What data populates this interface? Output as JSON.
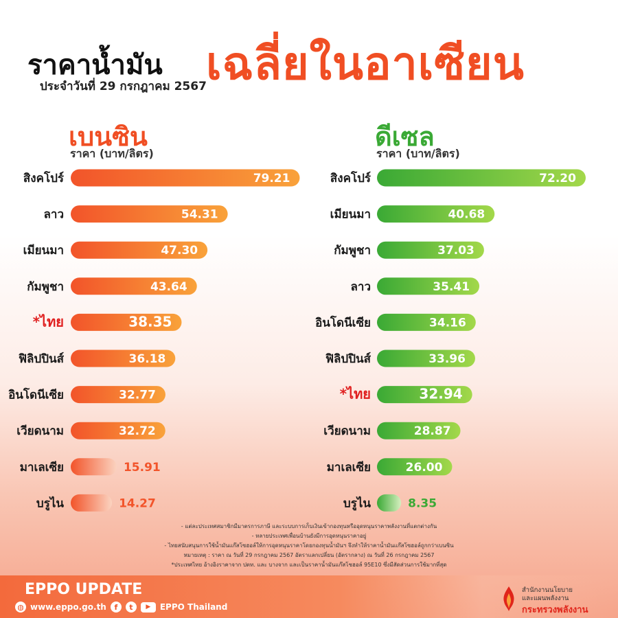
{
  "header": {
    "title_main": "ราคาน้ำมัน",
    "title_accent": "เฉลี่ยในอาเซียน",
    "subtitle": "ประจำวันที่ 29 กรกฎาคม 2567"
  },
  "colors": {
    "accent": "#f04e23",
    "gasoline_bar": "#f2542a",
    "gasoline_bar_end": "#f9a23a",
    "diesel_bar": "#4db848",
    "diesel_bar_end": "#9fd64a",
    "highlight_text": "#e02020"
  },
  "chart_data": [
    {
      "type": "bar",
      "orientation": "horizontal",
      "title": "เบนซิน",
      "ylabel": "ราคา (บาท/ลิตร)",
      "categories": [
        "สิงคโปร์",
        "ลาว",
        "เมียนมา",
        "กัมพูชา",
        "*ไทย",
        "ฟิลิปปินส์",
        "อินโดนีเซีย",
        "เวียดนาม",
        "มาเลเซีย",
        "บรูไน"
      ],
      "values": [
        79.21,
        54.31,
        47.3,
        43.64,
        38.35,
        36.18,
        32.77,
        32.72,
        15.91,
        14.27
      ],
      "labels": [
        "79.21",
        "54.31",
        "47.30",
        "43.64",
        "38.35",
        "36.18",
        "32.77",
        "32.72",
        "15.91",
        "14.27"
      ],
      "highlight": "*ไทย",
      "xlim": [
        0,
        80
      ]
    },
    {
      "type": "bar",
      "orientation": "horizontal",
      "title": "ดีเซล",
      "ylabel": "ราคา (บาท/ลิตร)",
      "categories": [
        "สิงคโปร์",
        "เมียนมา",
        "กัมพูชา",
        "ลาว",
        "อินโดนีเซีย",
        "ฟิลิปปินส์",
        "*ไทย",
        "เวียดนาม",
        "มาเลเซีย",
        "บรูไน"
      ],
      "values": [
        72.2,
        40.68,
        37.03,
        35.41,
        34.16,
        33.96,
        32.94,
        28.87,
        26.0,
        8.35
      ],
      "labels": [
        "72.20",
        "40.68",
        "37.03",
        "35.41",
        "34.16",
        "33.96",
        "32.94",
        "28.87",
        "26.00",
        "8.35"
      ],
      "highlight": "*ไทย",
      "xlim": [
        0,
        80
      ]
    }
  ],
  "notes": [
    "- แต่ละประเทศสมาชิกมีมาตรการภาษี และระบบการเก็บเงินเข้ากองทุนหรืออุดหนุนราคาพลังงานที่แตกต่างกัน",
    "- หลายประเทศเพื่อนบ้านยังมีการอุดหนุนราคาอยู่",
    "- ไทยสนับสนุนการใช้น้ำมันแก๊สโซฮอล์ให้การอุดหนุนราคาโดยกองทุนน้ำมันฯ จึงทำให้ราคาน้ำมันแก๊สโซฮอล์ถูกกว่าเบนซิน",
    "หมายเหตุ :   ราคา ณ วันที่ 29 กรกฎาคม 2567 อัตราแลกเปลี่ยน (อัตรากลาง) ณ วันที่ 26 กรกฎาคม 2567",
    "*ประเทศไทย อ้างอิงราคาจาก ปตท. และ บางจาก และเป็นราคาน้ำมันแก๊สโซฮอล์ 95E10 ซึ่งมีสัดส่วนการใช้มากที่สุด"
  ],
  "footer": {
    "brand": "EPPO UPDATE",
    "website": "www.eppo.go.th",
    "social": "EPPO Thailand",
    "org_line1": "สำนักงานนโยบาย",
    "org_line2": "และแผนพลังงาน",
    "org_line3": "กระทรวงพลังงาน"
  }
}
